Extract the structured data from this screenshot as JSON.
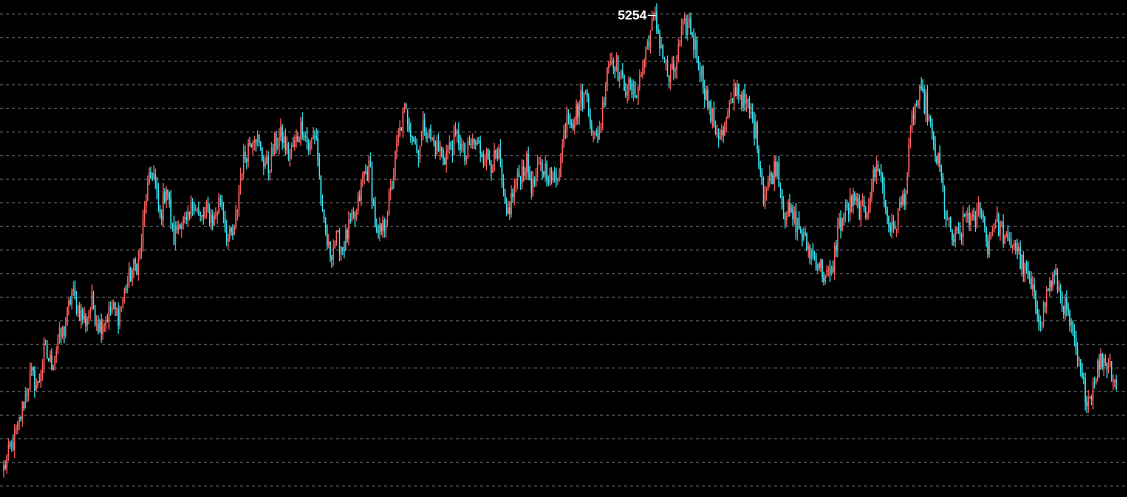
{
  "chart_data": {
    "type": "candlestick",
    "title": "",
    "xlabel": "",
    "ylabel": "",
    "ylim": [
      3800,
      5280
    ],
    "grid": true,
    "peak_annotation": {
      "label": "5254",
      "value": 5254
    },
    "colors": {
      "background": "#000000",
      "up": "#ff5f5f",
      "down": "#36e6f2",
      "grid": "#5a5a5a",
      "label": "#ffffff"
    },
    "series": [
      {
        "values": [
          3860,
          3920,
          3975,
          4070,
          4150,
          4110,
          4220,
          4180,
          4250,
          4290,
          4400,
          4350,
          4310,
          4370,
          4300,
          4320,
          4350,
          4330,
          4420,
          4470,
          4500,
          4700,
          4780,
          4620,
          4740,
          4560,
          4630,
          4600,
          4690,
          4620,
          4650,
          4620,
          4700,
          4560,
          4580,
          4780,
          4850,
          4900,
          4820,
          4780,
          4860,
          4880,
          4820,
          4860,
          4920,
          4840,
          4900,
          4620,
          4520,
          4560,
          4540,
          4600,
          4640,
          4760,
          4780,
          4560,
          4600,
          4700,
          4850,
          4960,
          4910,
          4830,
          4920,
          4870,
          4840,
          4820,
          4850,
          4880,
          4810,
          4860,
          4850,
          4820,
          4800,
          4810,
          4620,
          4700,
          4760,
          4800,
          4720,
          4780,
          4780,
          4740,
          4790,
          4960,
          4930,
          4990,
          5010,
          4860,
          4910,
          5110,
          5120,
          5050,
          5030,
          5010,
          5070,
          5180,
          5240,
          5150,
          5050,
          5090,
          5200,
          5230,
          5150,
          5060,
          4960,
          4900,
          4880,
          4960,
          5040,
          4990,
          4950,
          4880,
          4700,
          4750,
          4800,
          4650,
          4640,
          4610,
          4560,
          4520,
          4500,
          4450,
          4450,
          4600,
          4640,
          4680,
          4660,
          4640,
          4740,
          4800,
          4660,
          4580,
          4650,
          4720,
          4950,
          5000,
          4980,
          4850,
          4780,
          4620,
          4560,
          4580,
          4650,
          4600,
          4680,
          4540,
          4620,
          4600,
          4540,
          4560,
          4490,
          4440,
          4370,
          4320,
          4420,
          4450,
          4380,
          4320,
          4220,
          4120,
          4070,
          4160,
          4200,
          4180,
          4120
        ]
      }
    ]
  }
}
